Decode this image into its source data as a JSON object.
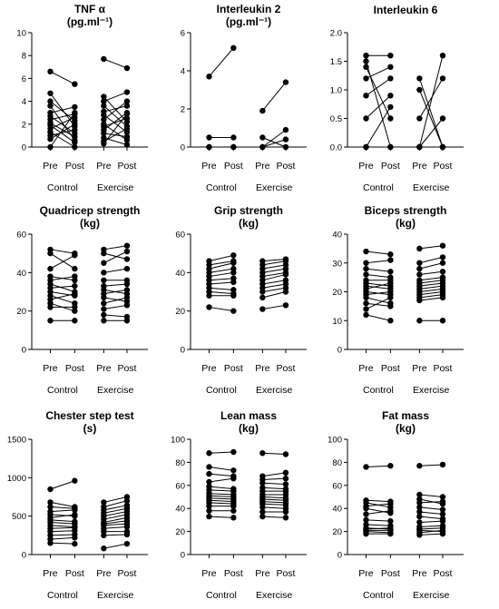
{
  "chart_data": [
    {
      "type": "line",
      "title": "TNF α",
      "subtitle": "(pg.ml⁻¹)",
      "ylim": [
        0,
        10
      ],
      "yticks": [
        "0",
        "2",
        "4",
        "6",
        "8",
        "10"
      ],
      "xticks": [
        "Pre",
        "Post",
        "Pre",
        "Post"
      ],
      "groups": [
        "Control",
        "Exercise"
      ],
      "series": [
        {
          "group": "Control",
          "pre": [
            6.6,
            4.7,
            4.0,
            3.6,
            3.0,
            2.7,
            2.4,
            2.1,
            1.9,
            1.6,
            1.3,
            1.0,
            0.7,
            0.0
          ],
          "post": [
            5.5,
            1.8,
            2.3,
            0.6,
            3.5,
            1.2,
            2.9,
            0.9,
            0.4,
            2.6,
            0.0,
            1.5,
            2.0,
            3.0
          ]
        },
        {
          "group": "Exercise",
          "pre": [
            7.7,
            4.4,
            4.0,
            3.6,
            3.1,
            2.8,
            2.4,
            2.0,
            1.8,
            1.5,
            1.2,
            0.8,
            0.5,
            0.3
          ],
          "post": [
            6.9,
            2.2,
            4.8,
            1.8,
            3.6,
            1.3,
            4.0,
            0.6,
            2.5,
            3.0,
            0.9,
            0.2,
            1.6,
            2.9
          ]
        }
      ]
    },
    {
      "type": "line",
      "title": "Interleukin 2",
      "subtitle": "(pg.ml⁻¹)",
      "ylim": [
        0,
        6
      ],
      "yticks": [
        "0",
        "2",
        "4",
        "6"
      ],
      "xticks": [
        "Pre",
        "Post",
        "Pre",
        "Post"
      ],
      "groups": [
        "Control",
        "Exercise"
      ],
      "series": [
        {
          "group": "Control",
          "pre": [
            3.7,
            0.5,
            0.0,
            0.0
          ],
          "post": [
            5.2,
            0.5,
            0.0,
            0.0
          ]
        },
        {
          "group": "Exercise",
          "pre": [
            1.9,
            0.5,
            0.0,
            0.0
          ],
          "post": [
            3.4,
            0.0,
            0.9,
            0.4
          ]
        }
      ]
    },
    {
      "type": "line",
      "title": "Interleukin 6",
      "ylim": [
        0,
        2.0
      ],
      "yticks": [
        "0.0",
        "0.5",
        "1.0",
        "1.5",
        "2.0"
      ],
      "xticks": [
        "Pre",
        "Post",
        "Pre",
        "Post"
      ],
      "groups": [
        "Control",
        "Exercise"
      ],
      "series": [
        {
          "group": "Control",
          "pre": [
            1.6,
            1.5,
            1.4,
            1.2,
            0.9,
            0.5,
            0.0,
            0.0
          ],
          "post": [
            1.6,
            0.0,
            0.5,
            1.4,
            1.2,
            0.9,
            0.7,
            0.0
          ]
        },
        {
          "group": "Exercise",
          "pre": [
            1.2,
            1.0,
            0.5,
            0.0,
            0.0,
            0.0
          ],
          "post": [
            0.0,
            0.0,
            1.2,
            0.5,
            1.6,
            0.0
          ]
        }
      ]
    },
    {
      "type": "line",
      "title": "Quadricep strength",
      "subtitle": "(kg)",
      "ylim": [
        0,
        60
      ],
      "yticks": [
        "0",
        "20",
        "40",
        "60"
      ],
      "xticks": [
        "Pre",
        "Post",
        "Pre",
        "Post"
      ],
      "groups": [
        "Control",
        "Exercise"
      ],
      "series": [
        {
          "group": "Control",
          "pre": [
            52,
            50,
            42,
            38,
            36,
            34,
            32,
            30,
            28,
            26,
            24,
            22,
            15
          ],
          "post": [
            50,
            42,
            49,
            36,
            38,
            30,
            33,
            28,
            24,
            29,
            20,
            22,
            15
          ]
        },
        {
          "group": "Exercise",
          "pre": [
            52,
            50,
            45,
            40,
            36,
            33,
            31,
            29,
            27,
            24,
            21,
            18,
            15
          ],
          "post": [
            54,
            47,
            51,
            42,
            36,
            34,
            29,
            31,
            25,
            27,
            23,
            17,
            15
          ]
        }
      ]
    },
    {
      "type": "line",
      "title": "Grip strength",
      "subtitle": "(kg)",
      "ylim": [
        0,
        60
      ],
      "yticks": [
        "0",
        "20",
        "40",
        "60"
      ],
      "xticks": [
        "Pre",
        "Post",
        "Pre",
        "Post"
      ],
      "groups": [
        "Control",
        "Exercise"
      ],
      "series": [
        {
          "group": "Control",
          "pre": [
            46,
            44,
            42,
            40,
            38,
            36,
            34,
            32,
            30,
            28,
            22
          ],
          "post": [
            49,
            46,
            45,
            42,
            40,
            37,
            35,
            31,
            29,
            28,
            20
          ]
        },
        {
          "group": "Exercise",
          "pre": [
            46,
            44,
            42,
            40,
            38,
            36,
            34,
            32,
            30,
            27,
            21
          ],
          "post": [
            47,
            46,
            44,
            42,
            40,
            39,
            36,
            34,
            32,
            30,
            23
          ]
        }
      ]
    },
    {
      "type": "line",
      "title": "Biceps strength",
      "subtitle": "(kg)",
      "ylim": [
        0,
        40
      ],
      "yticks": [
        "0",
        "10",
        "20",
        "30",
        "40"
      ],
      "xticks": [
        "Pre",
        "Post",
        "Pre",
        "Post"
      ],
      "groups": [
        "Control",
        "Exercise"
      ],
      "series": [
        {
          "group": "Control",
          "pre": [
            34,
            30,
            28,
            26,
            24,
            23,
            22,
            21,
            20,
            19,
            18,
            16,
            14,
            12
          ],
          "post": [
            33,
            31,
            27,
            25,
            24,
            22,
            21,
            23,
            19,
            20,
            16,
            15,
            18,
            10
          ]
        },
        {
          "group": "Exercise",
          "pre": [
            35,
            30,
            28,
            26,
            24,
            23,
            22,
            21,
            20,
            19,
            18,
            17,
            10
          ],
          "post": [
            36,
            32,
            30,
            27,
            25,
            24,
            23,
            22,
            21,
            20,
            19,
            18,
            10
          ]
        }
      ]
    },
    {
      "type": "line",
      "title": "Chester step test",
      "subtitle": "(s)",
      "ylim": [
        0,
        1500
      ],
      "yticks": [
        "0",
        "500",
        "1000",
        "1500"
      ],
      "xticks": [
        "Pre",
        "Post",
        "Pre",
        "Post"
      ],
      "groups": [
        "Control",
        "Exercise"
      ],
      "series": [
        {
          "group": "Control",
          "pre": [
            850,
            680,
            620,
            560,
            520,
            480,
            450,
            420,
            380,
            340,
            300,
            250,
            200,
            150
          ],
          "post": [
            960,
            620,
            600,
            580,
            500,
            520,
            430,
            400,
            360,
            350,
            310,
            260,
            220,
            140
          ]
        },
        {
          "group": "Exercise",
          "pre": [
            680,
            620,
            580,
            540,
            500,
            460,
            420,
            400,
            380,
            340,
            300,
            250,
            80
          ],
          "post": [
            750,
            700,
            640,
            600,
            560,
            520,
            480,
            440,
            400,
            360,
            300,
            260,
            140
          ]
        }
      ]
    },
    {
      "type": "line",
      "title": "Lean mass",
      "subtitle": "(kg)",
      "ylim": [
        0,
        100
      ],
      "yticks": [
        "0",
        "20",
        "40",
        "60",
        "80",
        "100"
      ],
      "xticks": [
        "Pre",
        "Post",
        "Pre",
        "Post"
      ],
      "groups": [
        "Control",
        "Exercise"
      ],
      "series": [
        {
          "group": "Control",
          "pre": [
            88,
            76,
            70,
            63,
            59,
            56,
            53,
            51,
            49,
            47,
            45,
            42,
            38,
            33
          ],
          "post": [
            89,
            73,
            68,
            66,
            57,
            55,
            52,
            50,
            48,
            46,
            44,
            42,
            38,
            32
          ]
        },
        {
          "group": "Exercise",
          "pre": [
            88,
            68,
            65,
            62,
            58,
            55,
            52,
            50,
            48,
            46,
            44,
            41,
            37,
            33
          ],
          "post": [
            87,
            71,
            66,
            61,
            57,
            55,
            52,
            49,
            47,
            45,
            43,
            40,
            37,
            32
          ]
        }
      ]
    },
    {
      "type": "line",
      "title": "Fat mass",
      "subtitle": "(kg)",
      "ylim": [
        0,
        100
      ],
      "yticks": [
        "0",
        "20",
        "40",
        "60",
        "80",
        "100"
      ],
      "xticks": [
        "Pre",
        "Post",
        "Pre",
        "Post"
      ],
      "groups": [
        "Control",
        "Exercise"
      ],
      "series": [
        {
          "group": "Control",
          "pre": [
            76,
            47,
            45,
            42,
            40,
            35,
            30,
            26,
            23,
            22,
            21,
            20,
            18
          ],
          "post": [
            77,
            46,
            41,
            44,
            36,
            38,
            29,
            25,
            22,
            23,
            21,
            19,
            18
          ]
        },
        {
          "group": "Exercise",
          "pre": [
            77,
            52,
            48,
            45,
            41,
            37,
            33,
            28,
            24,
            22,
            21,
            19,
            17
          ],
          "post": [
            78,
            50,
            44,
            46,
            39,
            35,
            31,
            29,
            25,
            23,
            20,
            21,
            18
          ]
        }
      ]
    }
  ]
}
